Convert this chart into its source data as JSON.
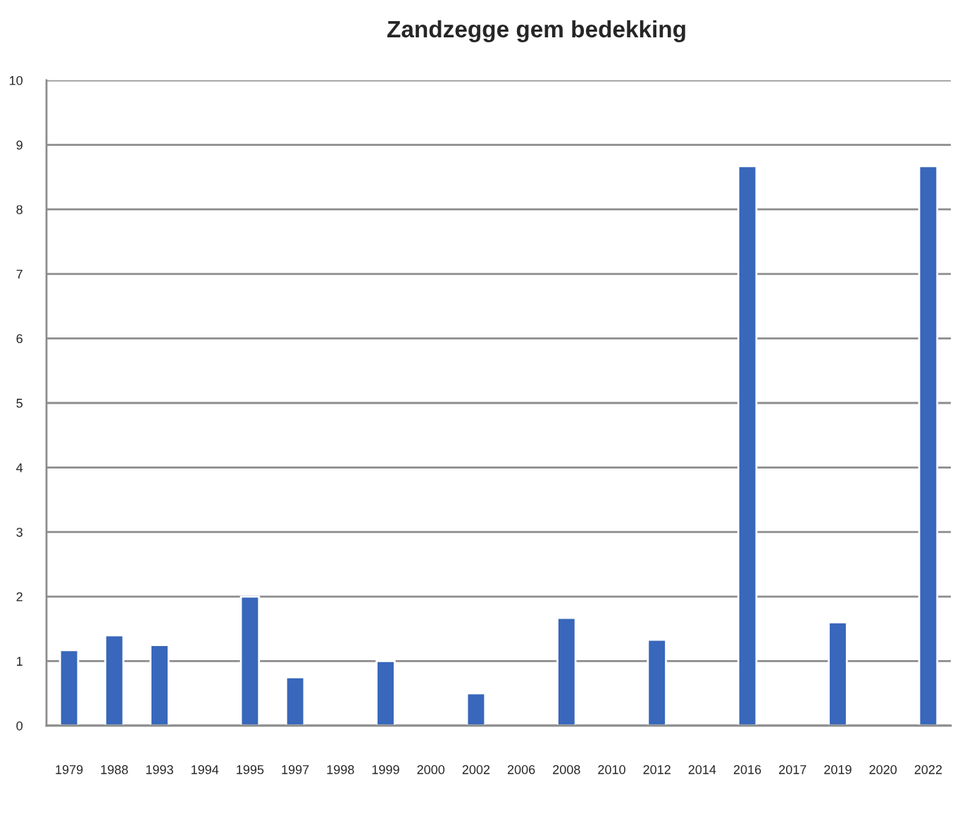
{
  "chart_data": {
    "type": "bar",
    "title": "Zandzegge gem bedekking",
    "categories": [
      "1979",
      "1988",
      "1993",
      "1994",
      "1995",
      "1997",
      "1998",
      "1999",
      "2000",
      "2002",
      "2006",
      "2008",
      "2010",
      "2012",
      "2014",
      "2016",
      "2017",
      "2019",
      "2020",
      "2022"
    ],
    "values": [
      1.17,
      1.4,
      1.25,
      null,
      2,
      0.75,
      null,
      1,
      null,
      0.5,
      null,
      1.67,
      null,
      1.33,
      null,
      8.67,
      null,
      1.6,
      null,
      8.67
    ],
    "color": "#3867bb",
    "ylim": [
      0,
      10
    ],
    "yticks": [
      0,
      1,
      2,
      3,
      4,
      5,
      6,
      7,
      8,
      9,
      10
    ],
    "grid": "y"
  }
}
